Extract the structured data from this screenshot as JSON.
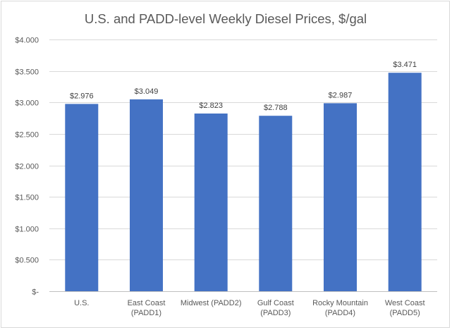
{
  "chart_data": {
    "type": "bar",
    "title": "U.S. and PADD-level Weekly Diesel Prices, $/gal",
    "xlabel": "",
    "ylabel": "",
    "categories": [
      [
        "U.S."
      ],
      [
        "East Coast",
        "(PADD1)"
      ],
      [
        "Midwest (PADD2)"
      ],
      [
        "Gulf Coast",
        "(PADD3)"
      ],
      [
        "Rocky Mountain",
        "(PADD4)"
      ],
      [
        "West Coast",
        "(PADD5)"
      ]
    ],
    "series": [
      {
        "values": [
          2.976,
          3.049,
          2.823,
          2.788,
          2.987,
          3.471
        ],
        "data_labels": [
          "$2.976",
          "$3.049",
          "$2.823",
          "$2.788",
          "$2.987",
          "$3.471"
        ],
        "color": "#4472c4"
      }
    ],
    "ylim": [
      0,
      4
    ],
    "yticks": [
      0,
      0.5,
      1,
      1.5,
      2,
      2.5,
      3,
      3.5,
      4
    ],
    "ytick_labels": [
      "$-",
      "$0.500",
      "$1.000",
      "$1.500",
      "$2.000",
      "$2.500",
      "$3.000",
      "$3.500",
      "$4.000"
    ],
    "grid": true,
    "legend": "none"
  }
}
